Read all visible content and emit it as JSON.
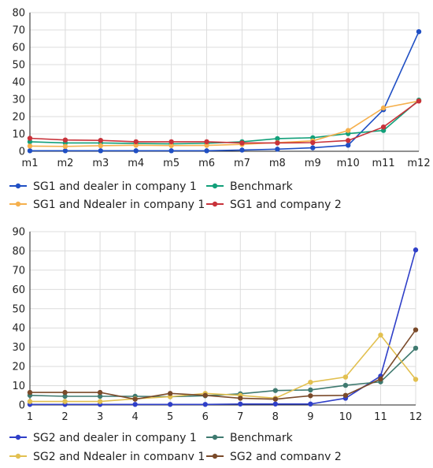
{
  "chart_data": [
    {
      "type": "line",
      "x": [
        "m1",
        "m2",
        "m3",
        "m4",
        "m5",
        "m6",
        "m7",
        "m8",
        "m9",
        "m10",
        "m11",
        "m12"
      ],
      "ylim": [
        0,
        80
      ],
      "yticks": [
        0,
        10,
        20,
        30,
        40,
        50,
        60,
        70,
        80
      ],
      "grid": true,
      "legend_position": "bottom",
      "series": [
        {
          "name": "SG1 and dealer in company 1",
          "color": "#1f4fc4",
          "values": [
            0.3,
            0.3,
            0.3,
            0.3,
            0.3,
            0.3,
            0.7,
            1.2,
            2.0,
            3.5,
            24.0,
            69.0
          ]
        },
        {
          "name": "Benchmark",
          "color": "#12a07a",
          "values": [
            5.5,
            4.8,
            4.8,
            4.5,
            4.3,
            4.6,
            5.5,
            7.3,
            7.8,
            10.2,
            12.0,
            29.5
          ]
        },
        {
          "name": "SG1 and Ndealer in company 1",
          "color": "#f5b04d",
          "values": [
            3.0,
            2.8,
            3.2,
            3.5,
            3.3,
            3.4,
            4.0,
            5.0,
            6.0,
            12.0,
            25.0,
            29.0
          ]
        },
        {
          "name": "SG1 and company 2",
          "color": "#c8323a",
          "values": [
            7.5,
            6.5,
            6.3,
            5.5,
            5.5,
            5.5,
            4.8,
            4.8,
            5.0,
            6.2,
            14.0,
            29.0
          ]
        }
      ]
    },
    {
      "type": "line",
      "x": [
        "1",
        "2",
        "3",
        "4",
        "5",
        "6",
        "7",
        "8",
        "9",
        "10",
        "11",
        "12"
      ],
      "ylim": [
        0,
        90
      ],
      "yticks": [
        0,
        10,
        20,
        30,
        40,
        50,
        60,
        70,
        80,
        90
      ],
      "grid": true,
      "legend_position": "bottom",
      "series": [
        {
          "name": "SG2 and dealer in company 1",
          "color": "#2f3fc8",
          "values": [
            0.3,
            0.3,
            0.3,
            0.3,
            0.3,
            0.3,
            0.5,
            0.5,
            0.5,
            3.5,
            15.0,
            80.5
          ]
        },
        {
          "name": "Benchmark",
          "color": "#3f7a70",
          "values": [
            5.0,
            4.5,
            4.5,
            4.5,
            4.3,
            4.8,
            5.8,
            7.5,
            7.8,
            10.2,
            12.0,
            29.5
          ]
        },
        {
          "name": "SG2 and Ndealer in company 1",
          "color": "#e2c050",
          "values": [
            1.8,
            1.8,
            1.8,
            3.2,
            4.3,
            6.0,
            5.0,
            3.5,
            11.8,
            14.5,
            36.3,
            13.3
          ]
        },
        {
          "name": "SG2 and company 2",
          "color": "#7a4a2a",
          "values": [
            6.5,
            6.5,
            6.5,
            3.0,
            6.0,
            5.0,
            3.5,
            3.0,
            4.8,
            5.0,
            13.5,
            39.0
          ]
        }
      ]
    }
  ]
}
